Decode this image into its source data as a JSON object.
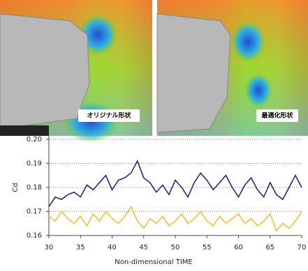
{
  "images": [
    {
      "label": "オリジナル形状"
    },
    {
      "label": "最適化形状"
    }
  ],
  "chart_data": {
    "type": "line",
    "x": [
      30,
      31,
      32,
      33,
      34,
      35,
      36,
      37,
      38,
      39,
      40,
      41,
      42,
      43,
      44,
      45,
      46,
      47,
      48,
      49,
      50,
      51,
      52,
      53,
      54,
      55,
      56,
      57,
      58,
      59,
      60,
      61,
      62,
      63,
      64,
      65,
      66,
      67,
      68,
      69,
      70
    ],
    "series": [
      {
        "color": "#1a1a7a",
        "values": [
          0.172,
          0.176,
          0.175,
          0.177,
          0.178,
          0.176,
          0.181,
          0.179,
          0.182,
          0.185,
          0.179,
          0.183,
          0.184,
          0.186,
          0.191,
          0.184,
          0.182,
          0.178,
          0.181,
          0.177,
          0.183,
          0.18,
          0.176,
          0.182,
          0.186,
          0.183,
          0.179,
          0.182,
          0.185,
          0.18,
          0.176,
          0.181,
          0.184,
          0.179,
          0.176,
          0.182,
          0.177,
          0.175,
          0.18,
          0.185,
          0.18
        ]
      },
      {
        "color": "#f0c020",
        "values": [
          0.168,
          0.166,
          0.17,
          0.167,
          0.165,
          0.168,
          0.164,
          0.169,
          0.166,
          0.17,
          0.167,
          0.165,
          0.168,
          0.172,
          0.166,
          0.163,
          0.167,
          0.165,
          0.168,
          0.164,
          0.166,
          0.169,
          0.165,
          0.167,
          0.17,
          0.166,
          0.164,
          0.168,
          0.165,
          0.167,
          0.169,
          0.165,
          0.167,
          0.164,
          0.166,
          0.169,
          0.162,
          0.165,
          0.163,
          0.166,
          0.17
        ]
      }
    ],
    "xlim": [
      30,
      70
    ],
    "xticks": [
      30,
      35,
      40,
      45,
      50,
      55,
      60,
      65,
      70
    ],
    "ylim": [
      0.16,
      0.2
    ],
    "yticks": [
      0.16,
      0.17,
      0.18,
      0.19,
      {
        "value": 0.2,
        "label": "0.20"
      }
    ],
    "xlabel": "Non-dimensional TIME",
    "ylabel": "Cd",
    "grid": true
  }
}
